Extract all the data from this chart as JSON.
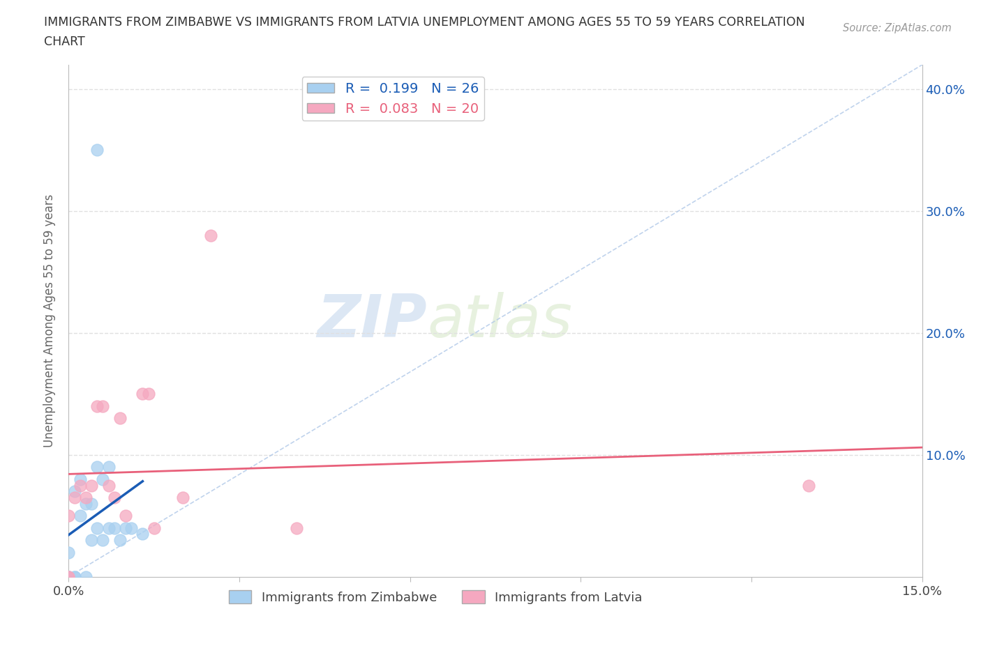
{
  "title_line1": "IMMIGRANTS FROM ZIMBABWE VS IMMIGRANTS FROM LATVIA UNEMPLOYMENT AMONG AGES 55 TO 59 YEARS CORRELATION",
  "title_line2": "CHART",
  "source": "Source: ZipAtlas.com",
  "ylabel": "Unemployment Among Ages 55 to 59 years",
  "xlim": [
    0.0,
    0.15
  ],
  "ylim": [
    0.0,
    0.42
  ],
  "xtick_positions": [
    0.0,
    0.03,
    0.06,
    0.09,
    0.12,
    0.15
  ],
  "xticklabels": [
    "0.0%",
    "",
    "",
    "",
    "",
    "15.0%"
  ],
  "ytick_positions": [
    0.0,
    0.1,
    0.2,
    0.3,
    0.4
  ],
  "yticklabels_right": [
    "",
    "10.0%",
    "20.0%",
    "30.0%",
    "40.0%"
  ],
  "zimbabwe_x": [
    0.0,
    0.0,
    0.0,
    0.0,
    0.0,
    0.001,
    0.001,
    0.001,
    0.002,
    0.002,
    0.003,
    0.003,
    0.004,
    0.004,
    0.005,
    0.005,
    0.006,
    0.006,
    0.007,
    0.007,
    0.008,
    0.009,
    0.01,
    0.011,
    0.013,
    0.005
  ],
  "zimbabwe_y": [
    0.0,
    0.0,
    0.0,
    0.0,
    0.02,
    0.0,
    0.0,
    0.07,
    0.05,
    0.08,
    0.0,
    0.06,
    0.03,
    0.06,
    0.04,
    0.09,
    0.03,
    0.08,
    0.04,
    0.09,
    0.04,
    0.03,
    0.04,
    0.04,
    0.035,
    0.35
  ],
  "latvia_x": [
    0.0,
    0.0,
    0.0,
    0.001,
    0.002,
    0.003,
    0.004,
    0.005,
    0.006,
    0.007,
    0.008,
    0.009,
    0.01,
    0.013,
    0.014,
    0.015,
    0.02,
    0.025,
    0.04,
    0.13
  ],
  "latvia_y": [
    0.0,
    0.0,
    0.05,
    0.065,
    0.075,
    0.065,
    0.075,
    0.14,
    0.14,
    0.075,
    0.065,
    0.13,
    0.05,
    0.15,
    0.15,
    0.04,
    0.065,
    0.28,
    0.04,
    0.075
  ],
  "zimbabwe_color": "#a8d0f0",
  "latvia_color": "#f5a8c0",
  "zimbabwe_line_color": "#1a5cb5",
  "latvia_line_color": "#e8607a",
  "r_zimbabwe": 0.199,
  "n_zimbabwe": 26,
  "r_latvia": 0.083,
  "n_latvia": 20,
  "watermark_zip": "ZIP",
  "watermark_atlas": "atlas",
  "background_color": "#ffffff",
  "grid_color": "#e0e0e0"
}
